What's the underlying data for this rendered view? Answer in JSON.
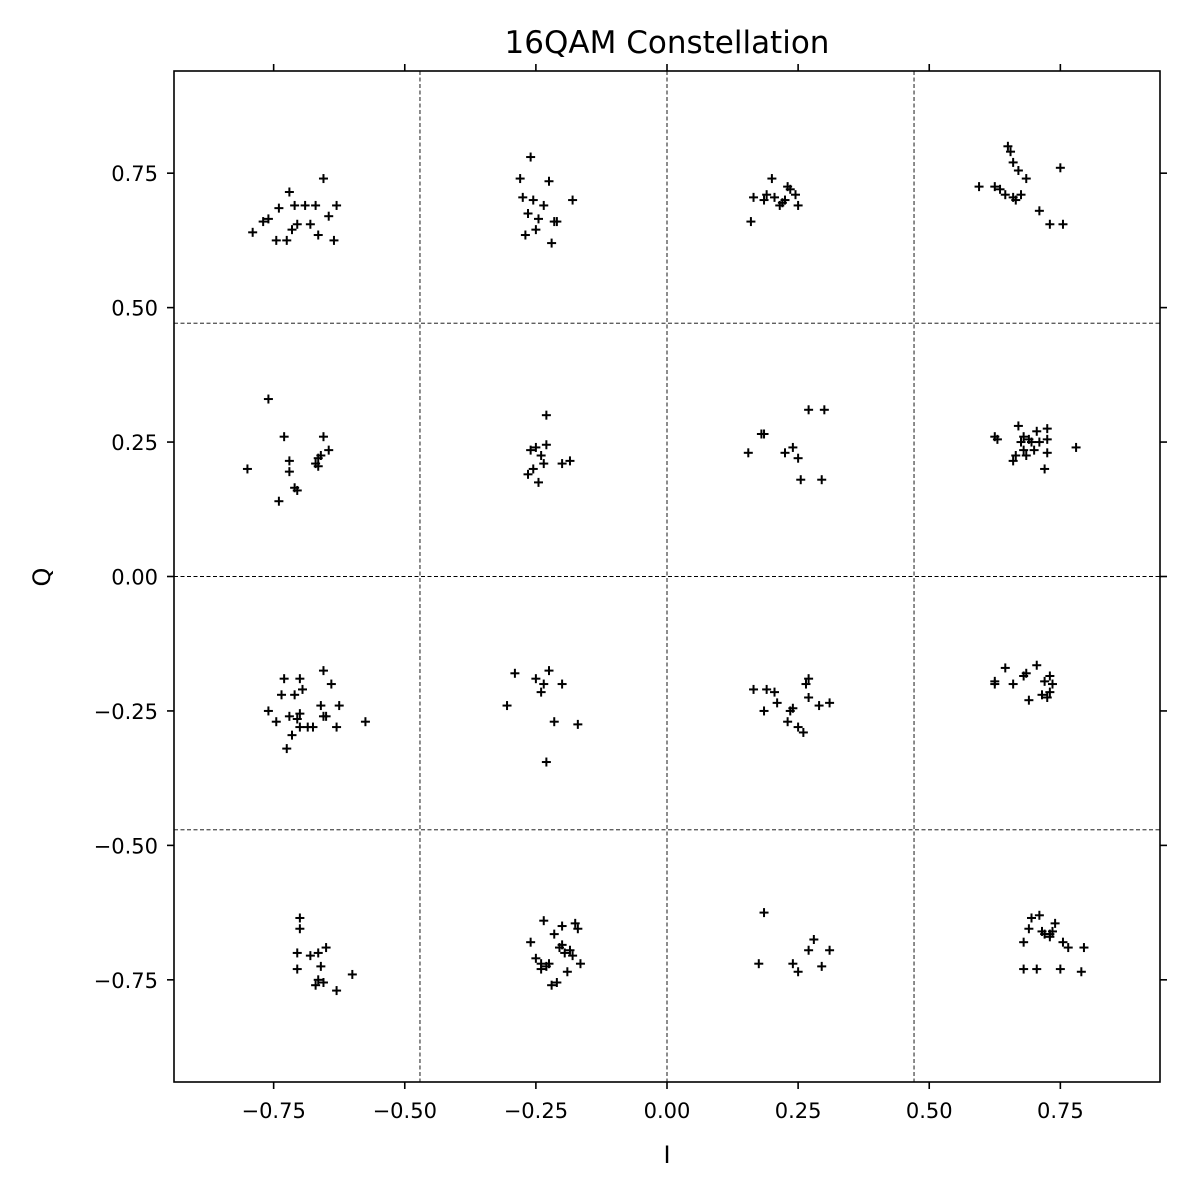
{
  "chart_data": {
    "type": "scatter",
    "title": "16QAM Constellation",
    "xlabel": "I",
    "ylabel": "Q",
    "xlim": [
      -0.94,
      0.94
    ],
    "ylim": [
      -0.94,
      0.94
    ],
    "grid": false,
    "marker": "+",
    "color": "#000000",
    "xticks": [
      -0.75,
      -0.5,
      -0.25,
      0.0,
      0.25,
      0.5,
      0.75
    ],
    "xtick_labels": [
      "−0.75",
      "−0.50",
      "−0.25",
      "0.00",
      "0.25",
      "0.50",
      "0.75"
    ],
    "yticks": [
      0.75,
      0.5,
      0.25,
      0.0,
      -0.25,
      -0.5,
      -0.75
    ],
    "ytick_labels": [
      "0.75",
      "0.50",
      "0.25",
      "0.00",
      "−0.25",
      "−0.50",
      "−0.75"
    ],
    "decision_boundaries_x": [
      -0.471,
      0.0,
      0.471
    ],
    "decision_boundaries_y": [
      -0.471,
      0.0,
      0.471
    ],
    "points": [
      [
        -0.79,
        0.64
      ],
      [
        -0.77,
        0.66
      ],
      [
        -0.76,
        0.665
      ],
      [
        -0.745,
        0.625
      ],
      [
        -0.74,
        0.685
      ],
      [
        -0.725,
        0.625
      ],
      [
        -0.72,
        0.715
      ],
      [
        -0.715,
        0.645
      ],
      [
        -0.71,
        0.69
      ],
      [
        -0.705,
        0.655
      ],
      [
        -0.69,
        0.69
      ],
      [
        -0.68,
        0.655
      ],
      [
        -0.67,
        0.69
      ],
      [
        -0.665,
        0.635
      ],
      [
        -0.655,
        0.74
      ],
      [
        -0.645,
        0.67
      ],
      [
        -0.635,
        0.625
      ],
      [
        -0.63,
        0.69
      ],
      [
        -0.28,
        0.74
      ],
      [
        -0.275,
        0.705
      ],
      [
        -0.27,
        0.635
      ],
      [
        -0.265,
        0.675
      ],
      [
        -0.26,
        0.78
      ],
      [
        -0.255,
        0.7
      ],
      [
        -0.25,
        0.645
      ],
      [
        -0.245,
        0.665
      ],
      [
        -0.235,
        0.69
      ],
      [
        -0.225,
        0.735
      ],
      [
        -0.22,
        0.62
      ],
      [
        -0.215,
        0.66
      ],
      [
        -0.21,
        0.66
      ],
      [
        -0.18,
        0.7
      ],
      [
        0.16,
        0.66
      ],
      [
        0.165,
        0.705
      ],
      [
        0.185,
        0.7
      ],
      [
        0.19,
        0.71
      ],
      [
        0.2,
        0.74
      ],
      [
        0.205,
        0.705
      ],
      [
        0.215,
        0.69
      ],
      [
        0.22,
        0.695
      ],
      [
        0.225,
        0.7
      ],
      [
        0.23,
        0.725
      ],
      [
        0.235,
        0.72
      ],
      [
        0.245,
        0.71
      ],
      [
        0.25,
        0.69
      ],
      [
        0.595,
        0.725
      ],
      [
        0.625,
        0.725
      ],
      [
        0.635,
        0.72
      ],
      [
        0.645,
        0.71
      ],
      [
        0.65,
        0.8
      ],
      [
        0.655,
        0.79
      ],
      [
        0.66,
        0.705
      ],
      [
        0.66,
        0.77
      ],
      [
        0.665,
        0.7
      ],
      [
        0.67,
        0.755
      ],
      [
        0.675,
        0.71
      ],
      [
        0.685,
        0.74
      ],
      [
        0.71,
        0.68
      ],
      [
        0.73,
        0.655
      ],
      [
        0.75,
        0.76
      ],
      [
        0.755,
        0.655
      ],
      [
        -0.8,
        0.2
      ],
      [
        -0.76,
        0.33
      ],
      [
        -0.74,
        0.14
      ],
      [
        -0.73,
        0.26
      ],
      [
        -0.72,
        0.215
      ],
      [
        -0.72,
        0.195
      ],
      [
        -0.71,
        0.165
      ],
      [
        -0.705,
        0.16
      ],
      [
        -0.67,
        0.21
      ],
      [
        -0.665,
        0.22
      ],
      [
        -0.665,
        0.205
      ],
      [
        -0.66,
        0.225
      ],
      [
        -0.655,
        0.26
      ],
      [
        -0.645,
        0.235
      ],
      [
        -0.265,
        0.19
      ],
      [
        -0.26,
        0.235
      ],
      [
        -0.255,
        0.2
      ],
      [
        -0.25,
        0.24
      ],
      [
        -0.245,
        0.175
      ],
      [
        -0.24,
        0.225
      ],
      [
        -0.235,
        0.21
      ],
      [
        -0.23,
        0.3
      ],
      [
        -0.23,
        0.245
      ],
      [
        -0.2,
        0.21
      ],
      [
        -0.185,
        0.215
      ],
      [
        0.155,
        0.23
      ],
      [
        0.18,
        0.265
      ],
      [
        0.185,
        0.265
      ],
      [
        0.225,
        0.23
      ],
      [
        0.24,
        0.24
      ],
      [
        0.25,
        0.22
      ],
      [
        0.255,
        0.18
      ],
      [
        0.27,
        0.31
      ],
      [
        0.295,
        0.18
      ],
      [
        0.3,
        0.31
      ],
      [
        0.625,
        0.26
      ],
      [
        0.63,
        0.255
      ],
      [
        0.66,
        0.215
      ],
      [
        0.665,
        0.225
      ],
      [
        0.67,
        0.28
      ],
      [
        0.675,
        0.25
      ],
      [
        0.68,
        0.235
      ],
      [
        0.68,
        0.26
      ],
      [
        0.685,
        0.225
      ],
      [
        0.69,
        0.255
      ],
      [
        0.695,
        0.25
      ],
      [
        0.7,
        0.235
      ],
      [
        0.705,
        0.27
      ],
      [
        0.71,
        0.25
      ],
      [
        0.72,
        0.2
      ],
      [
        0.725,
        0.23
      ],
      [
        0.725,
        0.255
      ],
      [
        0.725,
        0.275
      ],
      [
        0.78,
        0.24
      ],
      [
        -0.76,
        -0.25
      ],
      [
        -0.745,
        -0.27
      ],
      [
        -0.735,
        -0.22
      ],
      [
        -0.73,
        -0.19
      ],
      [
        -0.725,
        -0.32
      ],
      [
        -0.72,
        -0.26
      ],
      [
        -0.715,
        -0.295
      ],
      [
        -0.71,
        -0.22
      ],
      [
        -0.705,
        -0.265
      ],
      [
        -0.7,
        -0.255
      ],
      [
        -0.7,
        -0.28
      ],
      [
        -0.7,
        -0.19
      ],
      [
        -0.695,
        -0.21
      ],
      [
        -0.685,
        -0.28
      ],
      [
        -0.675,
        -0.28
      ],
      [
        -0.66,
        -0.24
      ],
      [
        -0.655,
        -0.175
      ],
      [
        -0.655,
        -0.26
      ],
      [
        -0.65,
        -0.26
      ],
      [
        -0.64,
        -0.2
      ],
      [
        -0.63,
        -0.28
      ],
      [
        -0.625,
        -0.24
      ],
      [
        -0.575,
        -0.27
      ],
      [
        -0.305,
        -0.24
      ],
      [
        -0.29,
        -0.18
      ],
      [
        -0.25,
        -0.19
      ],
      [
        -0.24,
        -0.215
      ],
      [
        -0.235,
        -0.2
      ],
      [
        -0.23,
        -0.345
      ],
      [
        -0.225,
        -0.175
      ],
      [
        -0.215,
        -0.27
      ],
      [
        -0.2,
        -0.2
      ],
      [
        -0.17,
        -0.275
      ],
      [
        0.165,
        -0.21
      ],
      [
        0.185,
        -0.25
      ],
      [
        0.19,
        -0.21
      ],
      [
        0.205,
        -0.215
      ],
      [
        0.21,
        -0.235
      ],
      [
        0.23,
        -0.27
      ],
      [
        0.235,
        -0.25
      ],
      [
        0.24,
        -0.245
      ],
      [
        0.25,
        -0.28
      ],
      [
        0.26,
        -0.29
      ],
      [
        0.265,
        -0.2
      ],
      [
        0.27,
        -0.19
      ],
      [
        0.27,
        -0.225
      ],
      [
        0.29,
        -0.24
      ],
      [
        0.31,
        -0.235
      ],
      [
        0.625,
        -0.195
      ],
      [
        0.625,
        -0.2
      ],
      [
        0.645,
        -0.17
      ],
      [
        0.66,
        -0.2
      ],
      [
        0.68,
        -0.185
      ],
      [
        0.685,
        -0.18
      ],
      [
        0.69,
        -0.23
      ],
      [
        0.705,
        -0.165
      ],
      [
        0.715,
        -0.22
      ],
      [
        0.72,
        -0.195
      ],
      [
        0.725,
        -0.225
      ],
      [
        0.73,
        -0.185
      ],
      [
        0.73,
        -0.215
      ],
      [
        0.735,
        -0.2
      ],
      [
        -0.705,
        -0.7
      ],
      [
        -0.705,
        -0.73
      ],
      [
        -0.7,
        -0.635
      ],
      [
        -0.7,
        -0.655
      ],
      [
        -0.68,
        -0.705
      ],
      [
        -0.67,
        -0.76
      ],
      [
        -0.665,
        -0.75
      ],
      [
        -0.665,
        -0.7
      ],
      [
        -0.66,
        -0.725
      ],
      [
        -0.655,
        -0.755
      ],
      [
        -0.65,
        -0.69
      ],
      [
        -0.63,
        -0.77
      ],
      [
        -0.6,
        -0.74
      ],
      [
        -0.26,
        -0.68
      ],
      [
        -0.25,
        -0.71
      ],
      [
        -0.24,
        -0.72
      ],
      [
        -0.24,
        -0.73
      ],
      [
        -0.235,
        -0.64
      ],
      [
        -0.23,
        -0.725
      ],
      [
        -0.225,
        -0.72
      ],
      [
        -0.22,
        -0.76
      ],
      [
        -0.215,
        -0.665
      ],
      [
        -0.21,
        -0.755
      ],
      [
        -0.205,
        -0.69
      ],
      [
        -0.2,
        -0.65
      ],
      [
        -0.2,
        -0.685
      ],
      [
        -0.195,
        -0.7
      ],
      [
        -0.19,
        -0.735
      ],
      [
        -0.185,
        -0.695
      ],
      [
        -0.18,
        -0.705
      ],
      [
        -0.175,
        -0.645
      ],
      [
        -0.17,
        -0.655
      ],
      [
        -0.165,
        -0.72
      ],
      [
        0.175,
        -0.72
      ],
      [
        0.185,
        -0.625
      ],
      [
        0.24,
        -0.72
      ],
      [
        0.25,
        -0.735
      ],
      [
        0.27,
        -0.695
      ],
      [
        0.28,
        -0.675
      ],
      [
        0.295,
        -0.725
      ],
      [
        0.31,
        -0.695
      ],
      [
        0.68,
        -0.68
      ],
      [
        0.68,
        -0.73
      ],
      [
        0.69,
        -0.655
      ],
      [
        0.695,
        -0.635
      ],
      [
        0.705,
        -0.73
      ],
      [
        0.71,
        -0.63
      ],
      [
        0.715,
        -0.66
      ],
      [
        0.72,
        -0.665
      ],
      [
        0.73,
        -0.665
      ],
      [
        0.73,
        -0.67
      ],
      [
        0.735,
        -0.66
      ],
      [
        0.74,
        -0.645
      ],
      [
        0.75,
        -0.73
      ],
      [
        0.755,
        -0.68
      ],
      [
        0.765,
        -0.69
      ],
      [
        0.79,
        -0.735
      ],
      [
        0.795,
        -0.69
      ]
    ]
  }
}
